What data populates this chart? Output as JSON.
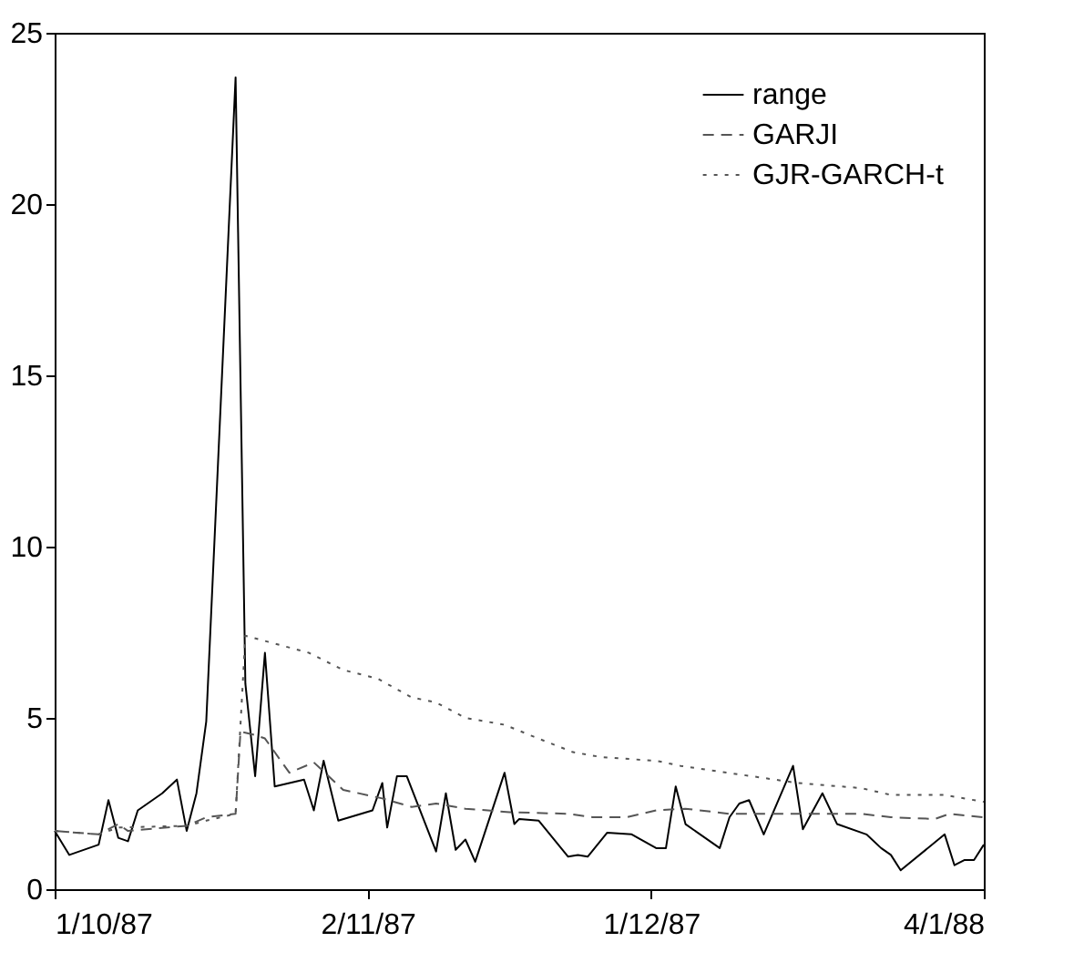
{
  "chart_data": {
    "type": "line",
    "xlim": [
      "1987-10-01",
      "1988-01-04"
    ],
    "ylim": [
      0,
      25
    ],
    "xticks": [
      {
        "value": "1987-10-01",
        "label": "1/10/87"
      },
      {
        "value": "1987-11-02",
        "label": "2/11/87"
      },
      {
        "value": "1987-12-01",
        "label": "1/12/87"
      },
      {
        "value": "1988-01-04",
        "label": "4/1/88"
      }
    ],
    "yticks": [
      0,
      5,
      10,
      15,
      20,
      25
    ],
    "grid": false,
    "legend": "top right",
    "series": [
      {
        "name": "range",
        "color": "#000000",
        "line_style": "solid",
        "x": [
          "1987-10-01",
          "1987-10-02T12:00",
          "1987-10-05T12:00",
          "1987-10-06T12:00",
          "1987-10-07T12:00",
          "1987-10-08T12:00",
          "1987-10-09T12:00",
          "1987-10-12",
          "1987-10-13T12:00",
          "1987-10-14T12:00",
          "1987-10-15T12:00",
          "1987-10-16T12:00",
          "1987-10-19T12:00",
          "1987-10-20T12:00",
          "1987-10-21T12:00",
          "1987-10-22T12:00",
          "1987-10-23T12:00",
          "1987-10-26T12:00",
          "1987-10-27T12:00",
          "1987-10-28T12:00",
          "1987-10-30",
          "1987-11-02T12:00",
          "1987-11-03T12:00",
          "1987-11-04",
          "1987-11-05",
          "1987-11-06",
          "1987-11-09",
          "1987-11-10",
          "1987-11-11",
          "1987-11-12",
          "1987-11-13",
          "1987-11-16",
          "1987-11-17",
          "1987-11-17T12:00",
          "1987-11-19T12:00",
          "1987-11-22T12:00",
          "1987-11-23T12:00",
          "1987-11-24T12:00",
          "1987-11-26T12:00",
          "1987-11-29",
          "1987-12-01T12:00",
          "1987-12-02T12:00",
          "1987-12-03T12:00",
          "1987-12-04T12:00",
          "1987-12-08",
          "1987-12-09",
          "1987-12-10",
          "1987-12-11",
          "1987-12-12T12:00",
          "1987-12-15T12:00",
          "1987-12-16T12:00",
          "1987-12-18T12:00",
          "1987-12-20",
          "1987-12-23",
          "1987-12-24T12:00",
          "1987-12-25T12:00",
          "1987-12-26T12:00",
          "1987-12-31",
          "1988-01-01",
          "1988-01-02",
          "1988-01-03",
          "1988-01-04"
        ],
        "values": [
          1.7,
          1.0,
          1.3,
          2.6,
          1.5,
          1.4,
          2.3,
          2.8,
          3.2,
          1.7,
          2.8,
          4.9,
          23.7,
          6.0,
          3.3,
          6.9,
          3.0,
          3.2,
          2.3,
          3.75,
          2.0,
          2.3,
          3.1,
          1.8,
          3.3,
          3.3,
          1.1,
          2.8,
          1.15,
          1.45,
          0.8,
          3.4,
          1.9,
          2.05,
          2.0,
          0.95,
          1.0,
          0.95,
          1.65,
          1.6,
          1.2,
          1.2,
          3.0,
          1.9,
          1.2,
          2.1,
          2.5,
          2.6,
          1.6,
          3.6,
          1.75,
          2.8,
          1.9,
          1.6,
          1.2,
          1.0,
          0.55,
          1.6,
          0.7,
          0.85,
          0.85,
          1.3
        ]
      },
      {
        "name": "GARJI",
        "color": "#555555",
        "line_style": "dashed",
        "x": [
          "1987-10-01",
          "1987-10-05T12:00",
          "1987-10-07T12:00",
          "1987-10-08T12:00",
          "1987-10-14T12:00",
          "1987-10-16T12:00",
          "1987-10-19T12:00",
          "1987-10-20",
          "1987-10-21T12:00",
          "1987-10-22T12:00",
          "1987-10-25",
          "1987-10-27T12:00",
          "1987-10-30T12:00",
          "1987-11-03T12:00",
          "1987-11-06T12:00",
          "1987-11-09",
          "1987-11-12",
          "1987-11-16T12:00",
          "1987-11-22T12:00",
          "1987-11-25",
          "1987-11-28T12:00",
          "1987-12-01T12:00",
          "1987-12-04T12:00",
          "1987-12-09",
          "1987-12-16",
          "1987-12-22T12:00",
          "1987-12-25T12:00",
          "1987-12-30",
          "1987-12-31T12:00",
          "1988-01-04"
        ],
        "values": [
          1.7,
          1.6,
          1.9,
          1.7,
          1.85,
          2.1,
          2.2,
          4.6,
          4.5,
          4.4,
          3.4,
          3.7,
          2.9,
          2.65,
          2.4,
          2.5,
          2.35,
          2.25,
          2.2,
          2.1,
          2.1,
          2.3,
          2.35,
          2.2,
          2.2,
          2.2,
          2.1,
          2.05,
          2.2,
          2.1
        ]
      },
      {
        "name": "GJR-GARCH-t",
        "color": "#555555",
        "line_style": "dotted",
        "x": [
          "1987-10-01",
          "1987-10-05T12:00",
          "1987-10-07T12:00",
          "1987-10-14T12:00",
          "1987-10-16T12:00",
          "1987-10-19T12:00",
          "1987-10-20T12:00",
          "1987-10-27",
          "1987-10-30T12:00",
          "1987-11-03",
          "1987-11-06T12:00",
          "1987-11-09",
          "1987-11-12",
          "1987-11-16",
          "1987-11-19",
          "1987-11-23",
          "1987-11-26",
          "1987-12-01T12:00",
          "1987-12-04",
          "1987-12-10",
          "1987-12-16",
          "1987-12-22T12:00",
          "1987-12-25T12:00",
          "1987-12-31",
          "1988-01-04"
        ],
        "values": [
          1.7,
          1.6,
          1.8,
          1.85,
          2.0,
          2.2,
          7.4,
          6.9,
          6.4,
          6.15,
          5.6,
          5.45,
          5.0,
          4.8,
          4.45,
          4.0,
          3.85,
          3.75,
          3.6,
          3.35,
          3.1,
          2.95,
          2.75,
          2.75,
          2.55
        ]
      }
    ]
  }
}
